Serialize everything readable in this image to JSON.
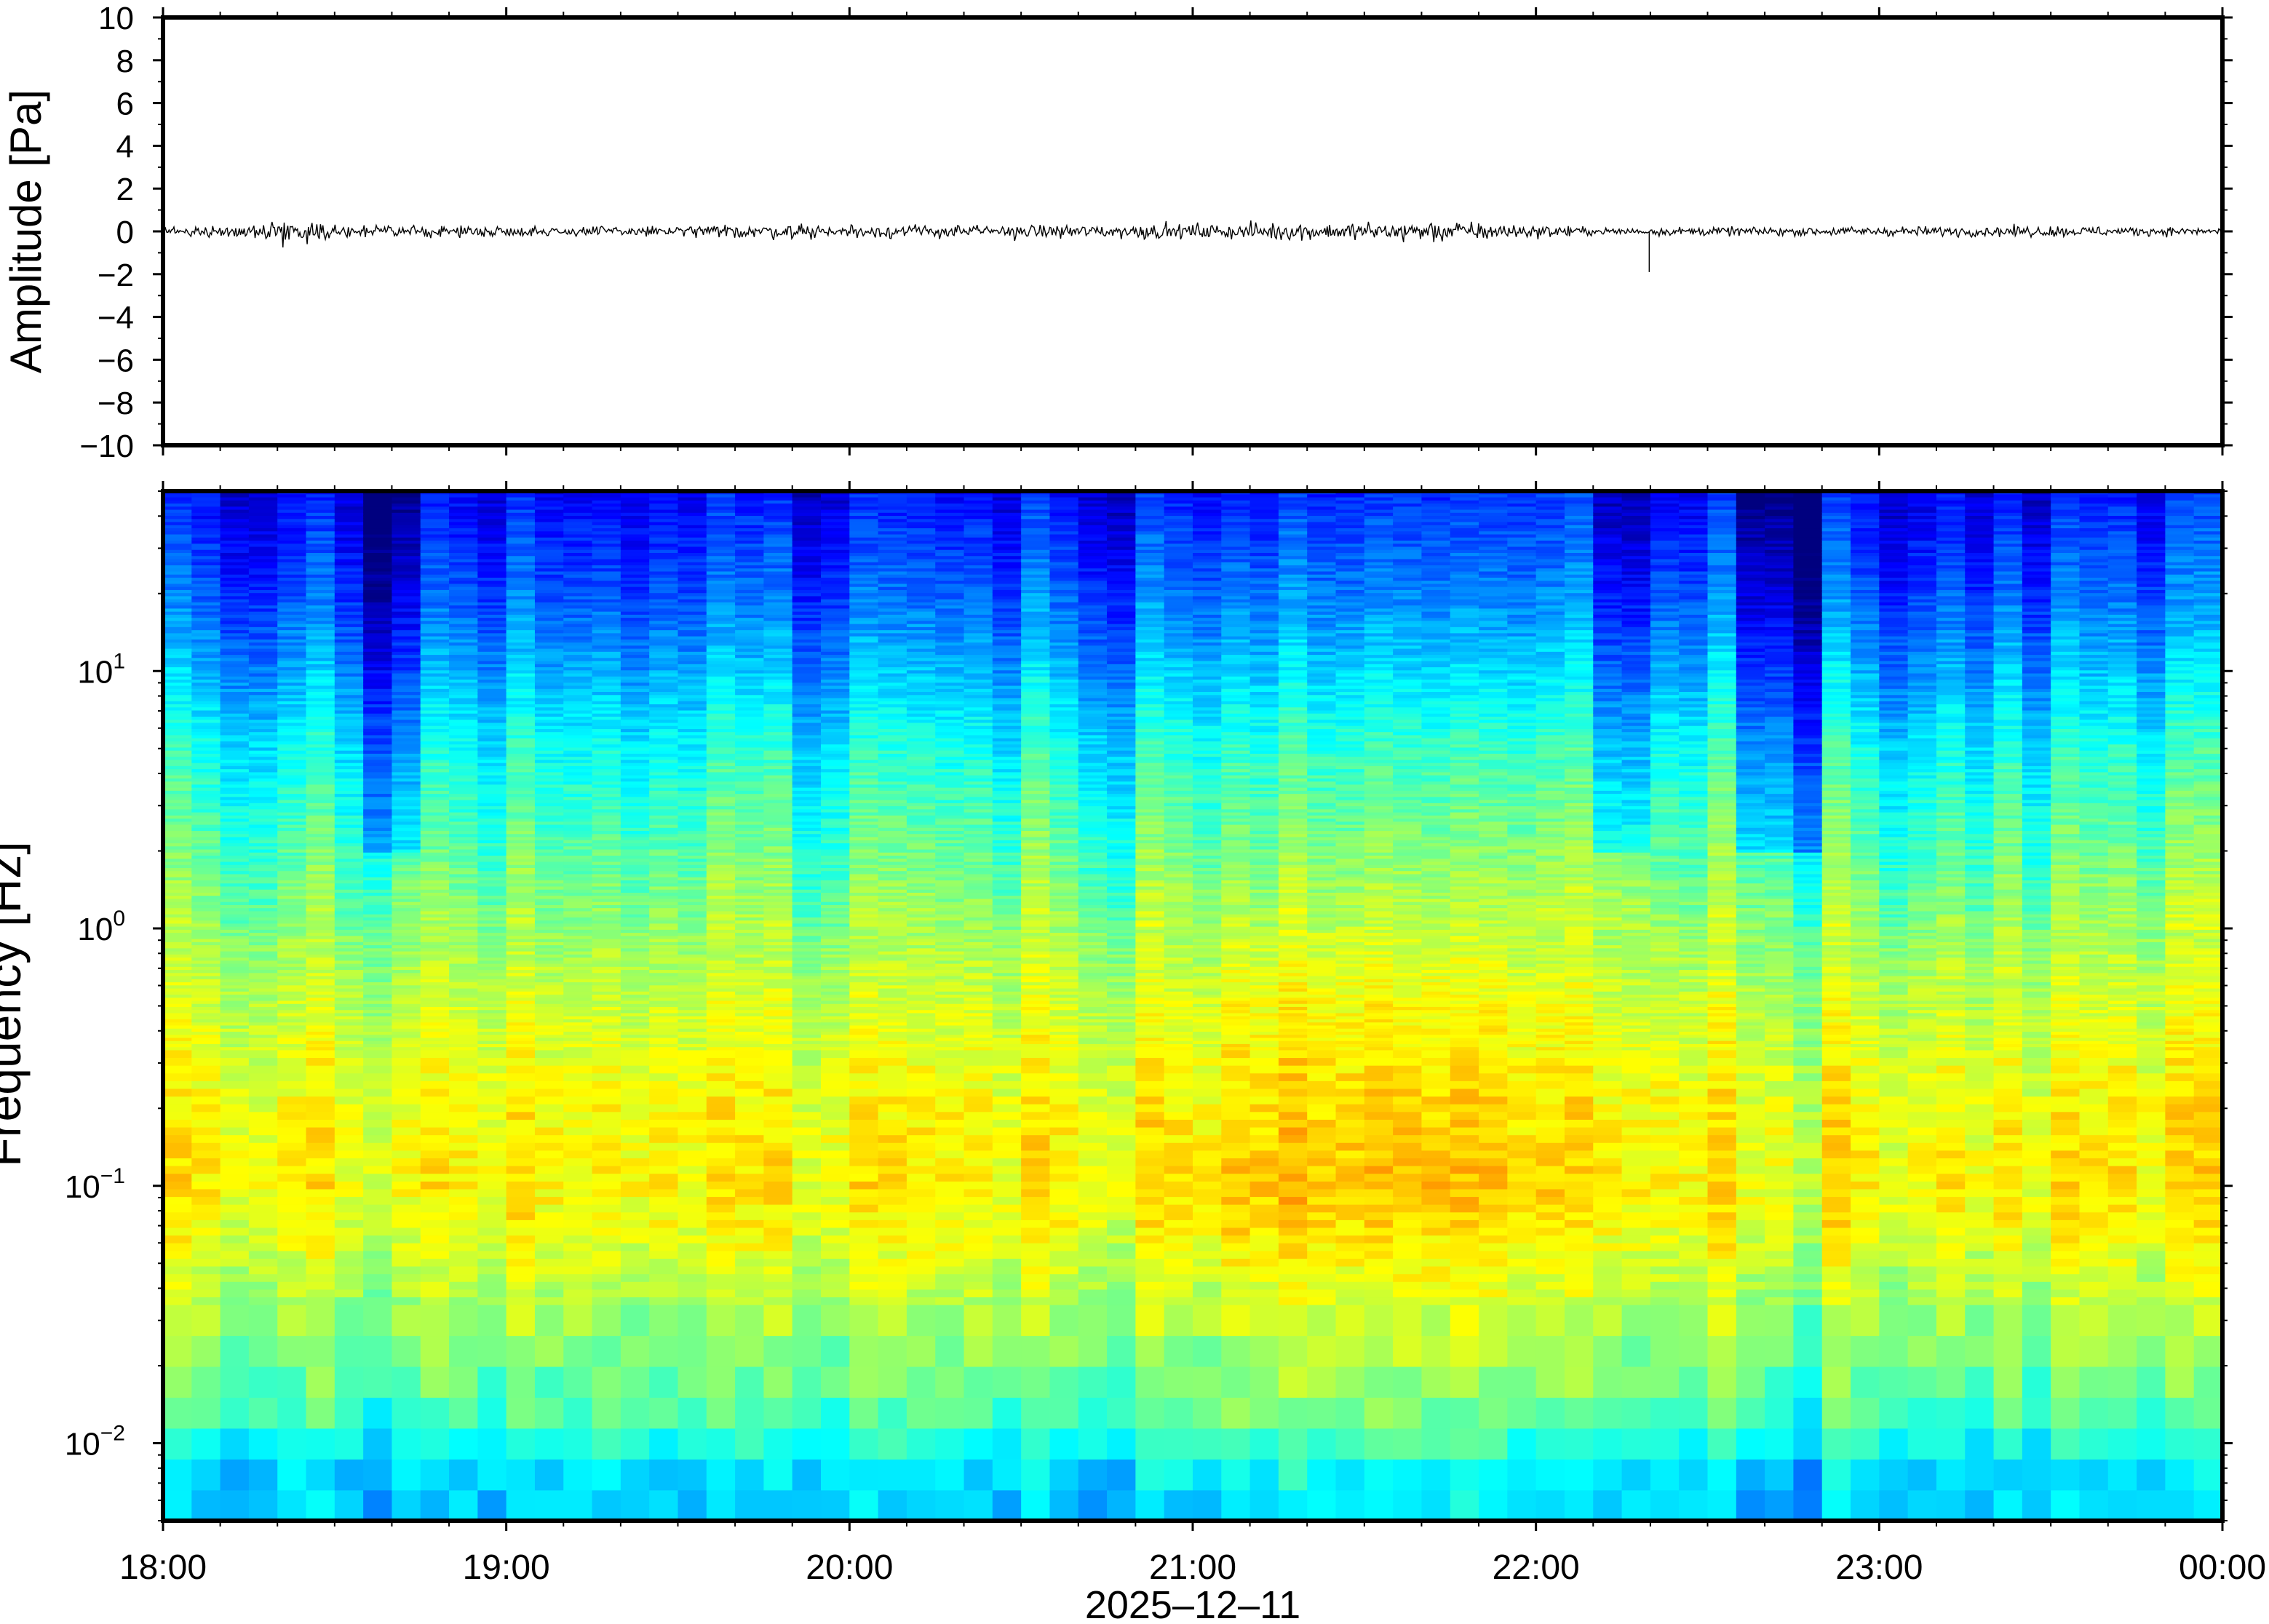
{
  "date_label": "2025‒12‒11",
  "chart_data": [
    {
      "type": "line",
      "name": "waveform",
      "ylabel": "Amplitude [Pa]",
      "xlim": [
        "18:00",
        "00:00"
      ],
      "ylim": [
        -10,
        10
      ],
      "y_ticks": [
        "10",
        "8",
        "6",
        "4",
        "2",
        "0",
        "−2",
        "−4",
        "−6",
        "−8",
        "−10"
      ],
      "y_tick_values": [
        10,
        8,
        6,
        4,
        2,
        0,
        -2,
        -4,
        -6,
        -8,
        -10
      ],
      "typical_amplitude_envelope": {
        "x_hours": [
          18.0,
          18.25,
          18.35,
          18.5,
          19.0,
          19.5,
          19.8,
          20.3,
          20.6,
          21.0,
          21.3,
          21.5,
          21.7,
          21.9,
          22.2,
          22.4,
          22.8,
          23.2,
          23.5,
          24.0
        ],
        "peak_abs_pa": [
          0.3,
          0.5,
          1.0,
          0.5,
          0.4,
          0.45,
          0.6,
          0.5,
          0.55,
          0.6,
          0.7,
          0.75,
          0.9,
          0.65,
          0.3,
          0.35,
          0.35,
          0.4,
          0.45,
          0.3
        ]
      },
      "spike": {
        "x_hour": 22.33,
        "min_pa": -1.9
      }
    },
    {
      "type": "heatmap",
      "name": "spectrogram",
      "ylabel": "Frequency [Hz]",
      "yscale": "log",
      "ylim": [
        0.005,
        50
      ],
      "y_ticks": [
        {
          "base": "10",
          "exp": "1",
          "value": 10
        },
        {
          "base": "10",
          "exp": "0",
          "value": 1
        },
        {
          "base": "10",
          "exp": "−1",
          "value": 0.1
        },
        {
          "base": "10",
          "exp": "−2",
          "value": 0.01
        }
      ],
      "xlim": [
        "18:00",
        "00:00"
      ],
      "x_ticks": [
        "18:00",
        "19:00",
        "20:00",
        "21:00",
        "22:00",
        "23:00",
        "00:00"
      ],
      "xlabel": "2025‒12‒11",
      "colormap": "jet",
      "colormap_stops": [
        "#00007f",
        "#0000ff",
        "#007fff",
        "#00ffff",
        "#7fff7f",
        "#ffff00",
        "#ff7f00",
        "#ff0000"
      ],
      "relative_power_profile": {
        "freq_hz": [
          0.005,
          0.008,
          0.012,
          0.02,
          0.04,
          0.07,
          0.1,
          0.2,
          0.5,
          1,
          2,
          5,
          10,
          20,
          50
        ],
        "level_0_to_1": [
          0.36,
          0.4,
          0.5,
          0.56,
          0.64,
          0.7,
          0.73,
          0.71,
          0.66,
          0.6,
          0.53,
          0.44,
          0.34,
          0.24,
          0.14
        ]
      },
      "quiet_periods_hours": [
        [
          18.6,
          18.75
        ],
        [
          22.2,
          22.35
        ],
        [
          22.6,
          22.8
        ]
      ],
      "active_periods_hours": [
        [
          21.1,
          21.9
        ]
      ]
    }
  ]
}
